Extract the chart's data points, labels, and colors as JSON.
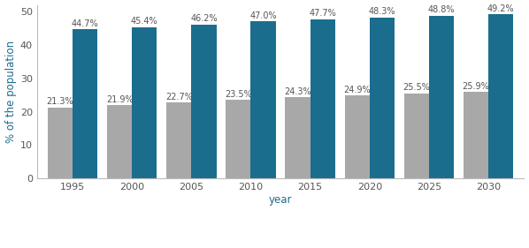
{
  "years": [
    1995,
    2000,
    2005,
    2010,
    2015,
    2020,
    2025,
    2030
  ],
  "chronic_2plus": [
    21.3,
    21.9,
    22.7,
    23.5,
    24.3,
    24.9,
    25.5,
    25.9
  ],
  "chronically_ill": [
    44.7,
    45.4,
    46.2,
    47.0,
    47.7,
    48.3,
    48.8,
    49.2
  ],
  "color_gray": "#a8a8a8",
  "color_blue": "#1b6d8e",
  "ylabel": "% of the population",
  "xlabel": "year",
  "ylim": [
    0,
    52
  ],
  "yticks": [
    0,
    10,
    20,
    30,
    40,
    50
  ],
  "bar_width": 0.42,
  "label_fontsize": 7.0,
  "axis_label_color": "#1b6d8e",
  "tick_color": "#555555",
  "background_color": "#ffffff",
  "spine_color": "#bbbbbb"
}
